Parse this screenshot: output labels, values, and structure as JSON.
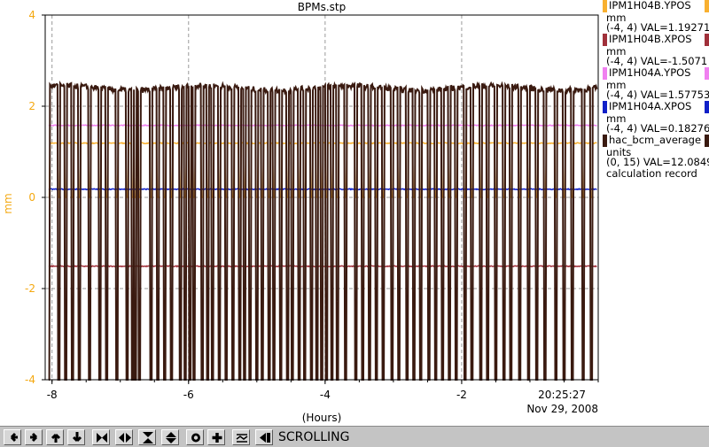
{
  "chart_data": {
    "type": "line",
    "title": "BPMs.stp",
    "xlabel": "(Hours)",
    "ylabel": "mm",
    "xlim": [
      -8.1,
      0
    ],
    "ylim": [
      -4,
      4
    ],
    "xticks": [
      -8,
      -6,
      -4,
      -2
    ],
    "xtick_labels": [
      "-8",
      "-6",
      "-4",
      "-2"
    ],
    "yticks": [
      -4,
      -2,
      0,
      2,
      4
    ],
    "ytick_labels": [
      "-4",
      "-2",
      "0",
      "2",
      "4"
    ],
    "grid": true,
    "time_stamp": "20:25:27",
    "date_stamp": "Nov 29, 2008",
    "series": [
      {
        "name": "IPM1H04B.YPOS",
        "color": "#f8b030",
        "baseline": 1.19,
        "dropout": 0.0
      },
      {
        "name": "IPM1H04B.XPOS",
        "color": "#a0303a",
        "baseline": -1.51,
        "dropout": -1.51
      },
      {
        "name": "IPM1H04A.YPOS",
        "color": "#f080f0",
        "baseline": 1.58,
        "dropout": 1.58
      },
      {
        "name": "IPM1H04A.XPOS",
        "color": "#1020c8",
        "baseline": 0.18,
        "dropout": 0.18
      },
      {
        "name": "hac_bcm_average",
        "color": "#3a1a10",
        "baseline": 2.4,
        "dropout": -4.0
      }
    ],
    "dropouts_hours": [
      -8.05,
      -7.9,
      -7.8,
      -7.7,
      -7.6,
      -7.45,
      -7.3,
      -7.2,
      -7.05,
      -6.9,
      -6.82,
      -6.78,
      -6.72,
      -6.55,
      -6.45,
      -6.35,
      -6.25,
      -6.12,
      -6.05,
      -5.98,
      -5.92,
      -5.8,
      -5.72,
      -5.65,
      -5.55,
      -5.45,
      -5.35,
      -5.25,
      -5.18,
      -5.1,
      -5.0,
      -4.92,
      -4.82,
      -4.75,
      -4.65,
      -4.55,
      -4.48,
      -4.38,
      -4.3,
      -4.2,
      -4.12,
      -4.05,
      -3.98,
      -3.9,
      -3.82,
      -3.7,
      -3.55,
      -3.45,
      -3.35,
      -3.25,
      -3.15,
      -3.02,
      -2.92,
      -2.8,
      -2.7,
      -2.6,
      -2.48,
      -2.38,
      -2.28,
      -2.18,
      -2.08,
      -1.95,
      -1.85,
      -1.72,
      -1.62,
      -1.5,
      -1.38,
      -1.28,
      -1.15,
      -1.02,
      -0.9,
      -0.78,
      -0.62,
      -0.5,
      -0.38,
      -0.22,
      -0.1
    ]
  },
  "legend": [
    {
      "name": "IPM1H04B.YPOS",
      "color": "#f8b030",
      "units": "mm",
      "range_value": "(-4, 4) VAL=1.19271"
    },
    {
      "name": "IPM1H04B.XPOS",
      "color": "#a0303a",
      "units": "mm",
      "range_value": "(-4, 4) VAL=-1.5071"
    },
    {
      "name": "IPM1H04A.YPOS",
      "color": "#f080f0",
      "units": "mm",
      "range_value": "(-4, 4) VAL=1.57753"
    },
    {
      "name": "IPM1H04A.XPOS",
      "color": "#1020c8",
      "units": "mm",
      "range_value": "(-4, 4) VAL=0.18276"
    },
    {
      "name": "hac_bcm_average",
      "color": "#3a1a10",
      "units": "units",
      "range_value": "(0, 15) VAL=12.0849",
      "note": "calculation record"
    }
  ],
  "toolbar": {
    "buttons": [
      {
        "name": "scroll-left-button",
        "icon": "arrow-left-icon"
      },
      {
        "name": "scroll-right-button",
        "icon": "arrow-right-icon"
      },
      {
        "name": "scroll-up-button",
        "icon": "arrow-up-icon"
      },
      {
        "name": "scroll-down-button",
        "icon": "arrow-down-icon"
      },
      {
        "name": "zoom-in-x-button",
        "icon": "zoom-in-x-icon"
      },
      {
        "name": "zoom-out-x-button",
        "icon": "zoom-out-x-icon"
      },
      {
        "name": "zoom-in-y-button",
        "icon": "zoom-in-y-icon"
      },
      {
        "name": "zoom-out-y-button",
        "icon": "zoom-out-y-icon"
      },
      {
        "name": "reset-button",
        "icon": "reset-icon"
      },
      {
        "name": "add-button",
        "icon": "plus-icon"
      },
      {
        "name": "autoscale-button",
        "icon": "autoscale-icon"
      },
      {
        "name": "pause-button",
        "icon": "pause-icon"
      }
    ],
    "status": "SCROLLING"
  }
}
